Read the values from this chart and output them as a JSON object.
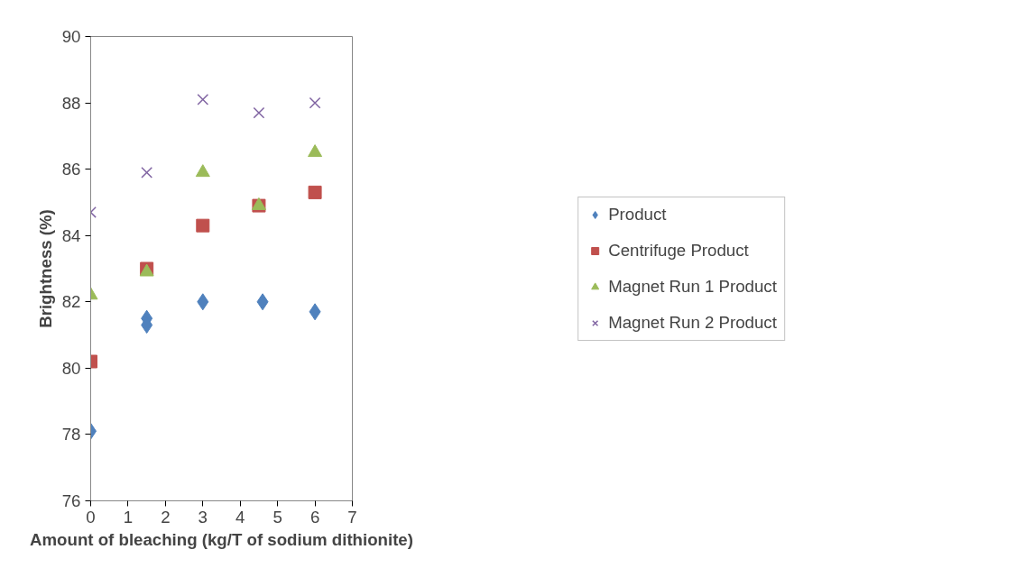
{
  "chart_data": {
    "type": "scatter",
    "xlabel": "Amount of bleaching (kg/T of sodium dithionite)",
    "ylabel": "Brightness (%)",
    "xlim": [
      0,
      7
    ],
    "ylim": [
      76,
      90
    ],
    "xticks": [
      0,
      1,
      2,
      3,
      4,
      5,
      6,
      7
    ],
    "yticks": [
      76,
      78,
      80,
      82,
      84,
      86,
      88,
      90
    ],
    "grid": false,
    "legend": "right",
    "series": [
      {
        "name": "Product",
        "color": "#4f81bd",
        "marker": "diamond",
        "x": [
          0,
          1.5,
          1.5,
          3,
          4.6,
          6
        ],
        "values": [
          78.1,
          81.5,
          81.3,
          82.0,
          82.0,
          81.7
        ]
      },
      {
        "name": "Centrifuge Product",
        "color": "#c0504d",
        "marker": "square",
        "x": [
          0,
          1.5,
          3,
          4.5,
          6
        ],
        "values": [
          80.2,
          83.0,
          84.3,
          84.9,
          85.3
        ]
      },
      {
        "name": "Magnet Run 1 Product",
        "color": "#9bbb59",
        "marker": "triangle",
        "x": [
          0,
          1.5,
          3,
          4.5,
          6
        ],
        "values": [
          82.2,
          82.9,
          85.9,
          84.9,
          86.5
        ]
      },
      {
        "name": "Magnet Run 2 Product",
        "color": "#8064a2",
        "marker": "cross",
        "x": [
          0,
          1.5,
          3,
          4.5,
          6
        ],
        "values": [
          84.7,
          85.9,
          88.1,
          87.7,
          88.0
        ]
      }
    ]
  }
}
